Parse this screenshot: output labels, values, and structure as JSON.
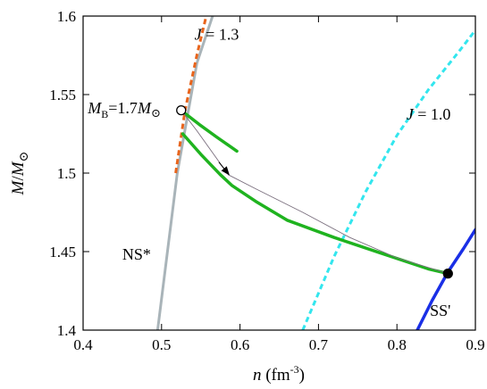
{
  "chart_data": {
    "type": "line",
    "xlabel": {
      "var": "n",
      "unit": "(fm",
      "exp": "-3",
      "close": ")"
    },
    "ylabel": {
      "var": "M",
      "sep": "/",
      "sub": "M",
      "sun": "⊙"
    },
    "xlim": [
      0.4,
      0.9
    ],
    "ylim": [
      1.4,
      1.6
    ],
    "x_ticks": [
      "0.4",
      "0.5",
      "0.6",
      "0.7",
      "0.8",
      "0.9"
    ],
    "y_ticks": [
      "1.4",
      "1.45",
      "1.5",
      "1.55",
      "1.6"
    ],
    "grid": false,
    "series": [
      {
        "id": "ns",
        "name": "NS*",
        "color": "#a9b4b9",
        "style": "solid",
        "width": 3,
        "x": [
          0.495,
          0.52,
          0.545,
          0.565
        ],
        "y": [
          1.4,
          1.5,
          1.57,
          1.6
        ]
      },
      {
        "id": "j13",
        "name": "J = 1.3",
        "color": "#e8641c",
        "style": "dashed",
        "width": 3,
        "x": [
          0.518,
          0.53,
          0.545,
          0.557
        ],
        "y": [
          1.5,
          1.54,
          1.575,
          1.6
        ]
      },
      {
        "id": "j10",
        "name": "J = 1.0",
        "color": "#33e6ee",
        "style": "dashed",
        "width": 3,
        "x": [
          0.68,
          0.72,
          0.76,
          0.8,
          0.84,
          0.88,
          0.9
        ],
        "y": [
          1.4,
          1.447,
          1.488,
          1.524,
          1.553,
          1.578,
          1.591
        ]
      },
      {
        "id": "ss",
        "name": "SS'",
        "color": "#1a2fe6",
        "style": "solid",
        "width": 3.5,
        "x": [
          0.826,
          0.845,
          0.865,
          0.885,
          0.9
        ],
        "y": [
          1.4,
          1.419,
          1.437,
          1.452,
          1.464
        ]
      },
      {
        "id": "green-upper",
        "name": "",
        "color": "#1fb31f",
        "style": "solid",
        "width": 3.5,
        "x": [
          0.53,
          0.548,
          0.57,
          0.596
        ],
        "y": [
          1.538,
          1.531,
          1.523,
          1.514
        ]
      },
      {
        "id": "green-lower",
        "name": "",
        "color": "#1fb31f",
        "style": "solid",
        "width": 3.5,
        "x": [
          0.527,
          0.55,
          0.575,
          0.59,
          0.62,
          0.66,
          0.72,
          0.78,
          0.84,
          0.865
        ],
        "y": [
          1.525,
          1.512,
          1.499,
          1.492,
          1.482,
          1.47,
          1.459,
          1.449,
          1.439,
          1.436
        ]
      },
      {
        "id": "track",
        "name": "",
        "color": "#7a6f7e",
        "style": "solid",
        "width": 0.9,
        "x": [
          0.525,
          0.545,
          0.575,
          0.585,
          0.62,
          0.68,
          0.74,
          0.8,
          0.865
        ],
        "y": [
          1.54,
          1.527,
          1.506,
          1.499,
          1.49,
          1.475,
          1.459,
          1.446,
          1.436
        ]
      }
    ],
    "points": [
      {
        "id": "mb-point",
        "x": 0.525,
        "y": 1.54,
        "fill": "#ffffff"
      },
      {
        "id": "ss-point",
        "x": 0.865,
        "y": 1.436,
        "fill": "#000000"
      }
    ],
    "arrow": {
      "from": [
        0.573,
        1.507
      ],
      "to": [
        0.586,
        1.499
      ]
    },
    "annotations": [
      {
        "id": "label-j13",
        "prefix": "J",
        "text": " = 1.3",
        "x": 0.542,
        "y": 1.585
      },
      {
        "id": "label-j10",
        "prefix": "J",
        "text": " = 1.0",
        "x": 0.812,
        "y": 1.534
      },
      {
        "id": "label-ns",
        "prefix": "",
        "text": "NS*",
        "x": 0.45,
        "y": 1.445
      },
      {
        "id": "label-ss",
        "prefix": "",
        "text": "SS'",
        "x": 0.842,
        "y": 1.409
      }
    ],
    "mb_label": {
      "main": "M",
      "sub": "B",
      "eq": "=1.7",
      "m2": "M",
      "sun": "⊙",
      "x": 0.406,
      "y": 1.538
    }
  }
}
